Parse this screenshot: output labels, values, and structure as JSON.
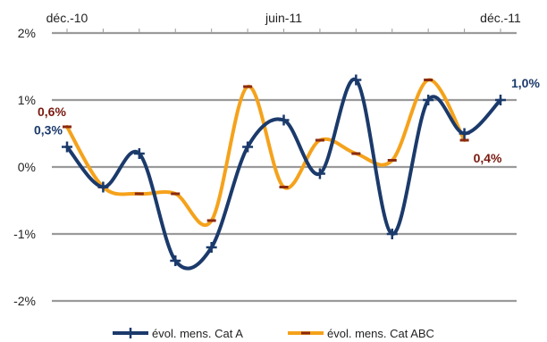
{
  "chart_data": {
    "type": "line",
    "x_tick_labels": [
      "déc.-10",
      "juin-11",
      "déc.-11"
    ],
    "x_tick_positions": [
      0,
      6,
      12
    ],
    "y_tick_labels": [
      "2%",
      "1%",
      "0%",
      "-1%",
      "-2%"
    ],
    "y_tick_values": [
      2,
      1,
      0,
      -1,
      -2
    ],
    "ylim": [
      -2,
      2
    ],
    "grid": true,
    "legend_position": "bottom",
    "series": [
      {
        "name": "évol. mens. Cat A",
        "color": "#1b3a6b",
        "values": [
          0.3,
          -0.3,
          0.2,
          -1.4,
          -1.2,
          0.3,
          0.7,
          -0.1,
          1.3,
          -1.0,
          1.0,
          0.5,
          1.0
        ]
      },
      {
        "name": "évol. mens. Cat ABC",
        "color": "#f5a21b",
        "values": [
          0.6,
          -0.3,
          -0.4,
          -0.4,
          -0.8,
          1.2,
          -0.3,
          0.4,
          0.2,
          0.1,
          1.3,
          0.4
        ]
      }
    ],
    "data_labels": [
      {
        "series": 0,
        "index": 0,
        "text": "0,3%",
        "color": "#1b3a6b"
      },
      {
        "series": 0,
        "index": 12,
        "text": "1,0%",
        "color": "#1b3a6b"
      },
      {
        "series": 1,
        "index": 0,
        "text": "0,6%",
        "color": "#7a1a10"
      },
      {
        "series": 1,
        "index": 11,
        "text": "0,4%",
        "color": "#7a1a10"
      }
    ]
  }
}
